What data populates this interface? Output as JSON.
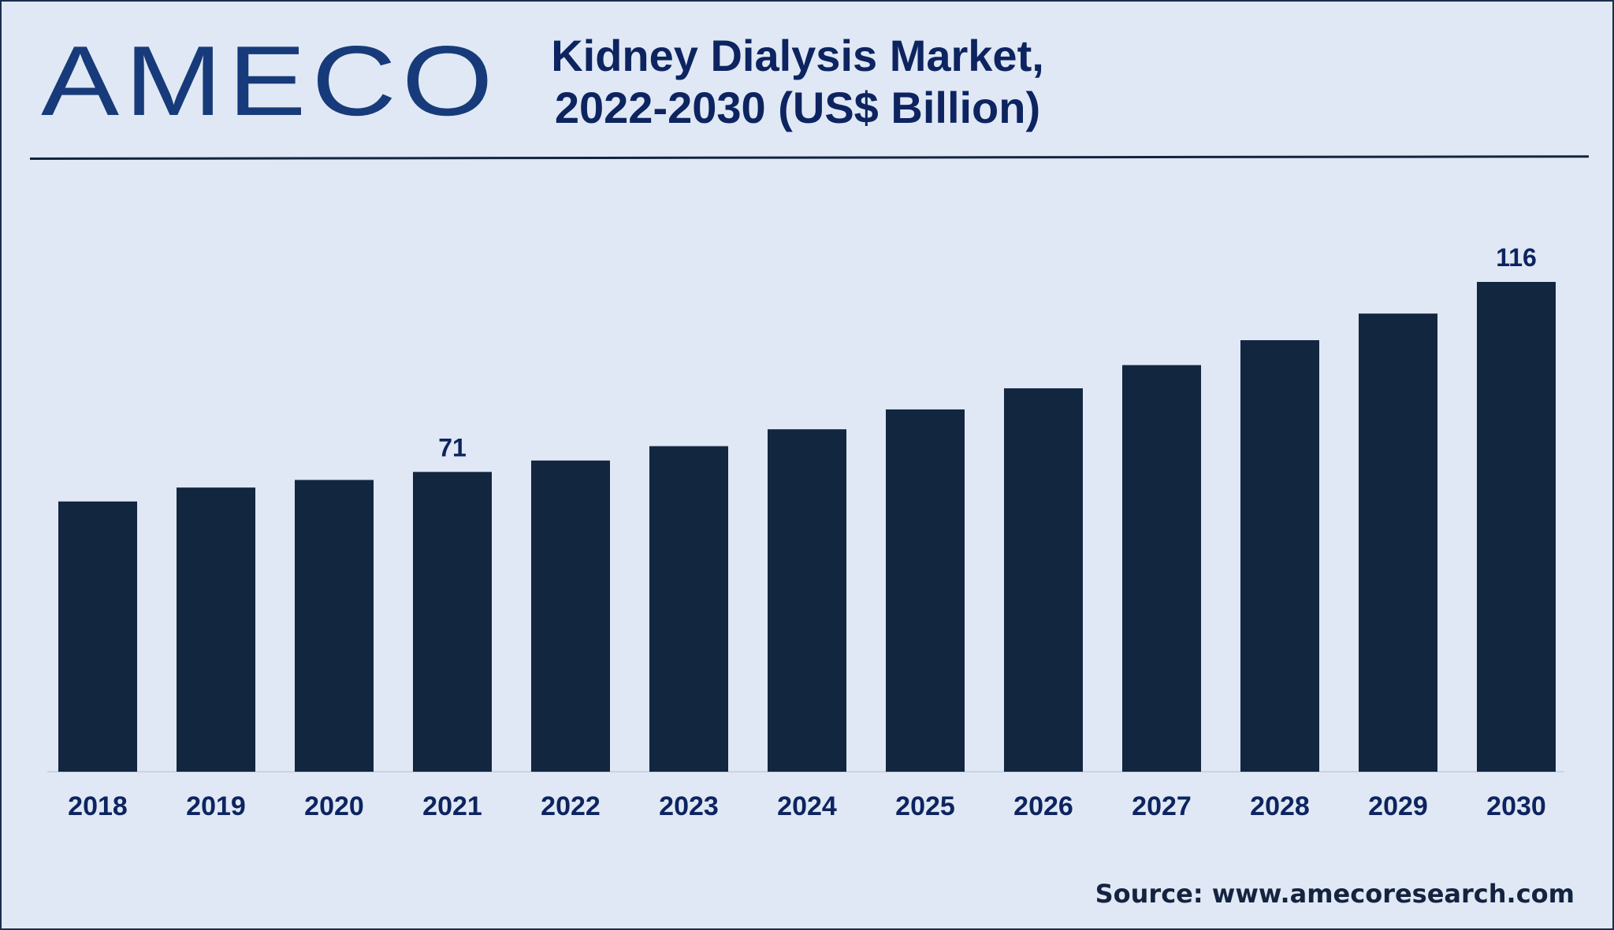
{
  "brand": {
    "logo_text": "AMECO"
  },
  "header": {
    "title_line1": "Kidney Dialysis Market,",
    "title_line2": "2022-2030 (US$ Billion)"
  },
  "footer": {
    "source": "Source: www.amecoresearch.com"
  },
  "colors": {
    "bar": "#13263f",
    "background": "#dfe8f4",
    "text": "#0d2460"
  },
  "chart_data": {
    "type": "bar",
    "title": "Kidney Dialysis Market, 2022-2030 (US$ Billion)",
    "xlabel": "",
    "ylabel": "",
    "categories": [
      "2018",
      "2019",
      "2020",
      "2021",
      "2022",
      "2023",
      "2024",
      "2025",
      "2026",
      "2027",
      "2028",
      "2029",
      "2030"
    ],
    "values": [
      64,
      67.3,
      69.1,
      71,
      73.7,
      77.1,
      81.1,
      85.8,
      90.8,
      96.3,
      102.2,
      108.5,
      116
    ],
    "data_labels": [
      {
        "category": "2021",
        "text": "71"
      },
      {
        "category": "2030",
        "text": "116"
      }
    ],
    "ylim": [
      0,
      116
    ],
    "grid": false,
    "legend": "none"
  }
}
